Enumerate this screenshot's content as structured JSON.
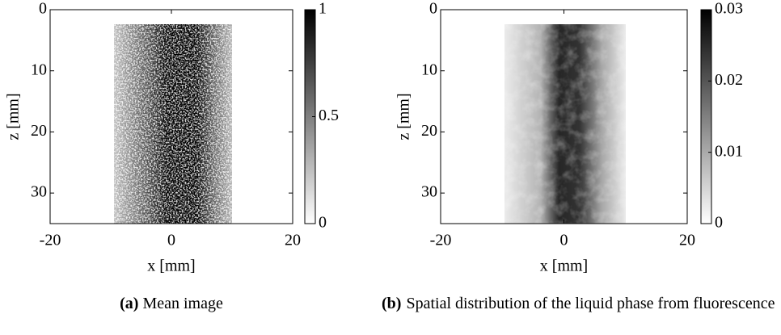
{
  "chart_data": [
    {
      "type": "image",
      "caption_label": "(a)",
      "caption": "Mean image",
      "xlabel": "x [mm]",
      "ylabel": "z [mm]",
      "xlim": [
        -20,
        20
      ],
      "xticks": [
        -20,
        0,
        20
      ],
      "ylim": [
        0,
        35
      ],
      "yticks": [
        0,
        10,
        20,
        30
      ],
      "clim": [
        0,
        1
      ],
      "cticks": [
        0,
        0.5,
        1
      ],
      "colormap": "gray_r"
    },
    {
      "type": "image",
      "caption_label": "(b)",
      "caption": "Spatial distribution of the liquid phase from fluorescence",
      "xlabel": "x [mm]",
      "ylabel": "z [mm]",
      "xlim": [
        -20,
        20
      ],
      "xticks": [
        -20,
        0,
        20
      ],
      "ylim": [
        0,
        35
      ],
      "yticks": [
        0,
        10,
        20,
        30
      ],
      "clim": [
        0,
        0.03
      ],
      "cticks": [
        0,
        0.01,
        0.02,
        0.03
      ],
      "colormap": "gray_r"
    }
  ]
}
